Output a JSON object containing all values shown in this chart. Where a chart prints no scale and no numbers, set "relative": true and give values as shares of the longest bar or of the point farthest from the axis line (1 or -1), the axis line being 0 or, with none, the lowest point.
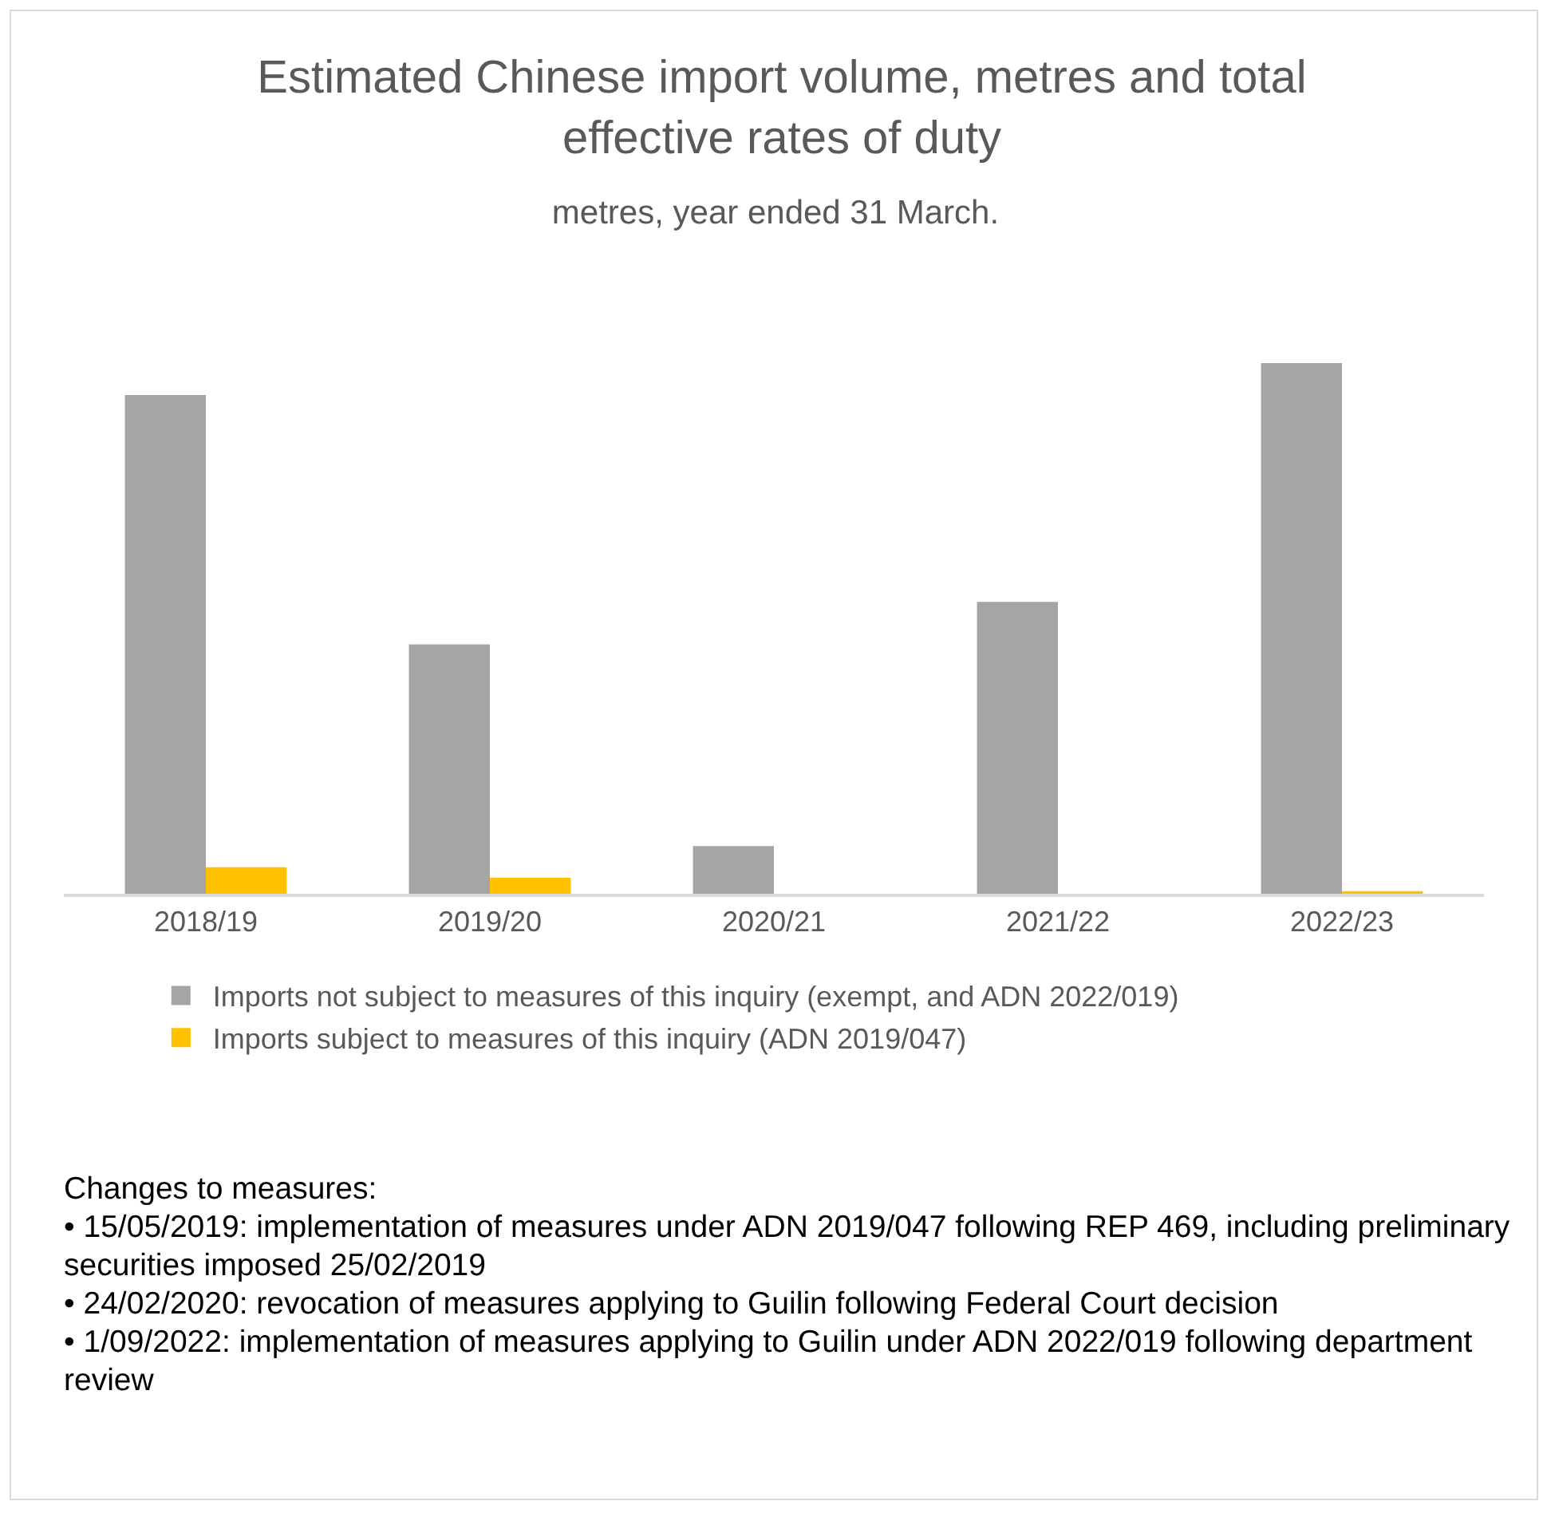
{
  "chart_data": {
    "type": "bar",
    "title": "Estimated Chinese import volume, metres and total effective rates of duty",
    "subtitle": "metres, year ended 31 March.",
    "categories": [
      "2018/19",
      "2019/20",
      "2020/21",
      "2021/22",
      "2022/23"
    ],
    "relative": true,
    "series": [
      {
        "name": "Imports not subject to measures of this inquiry (exempt, and ADN 2022/019)",
        "color": "#a5a5a5",
        "values": [
          0.94,
          0.47,
          0.09,
          0.55,
          1
        ]
      },
      {
        "name": "Imports subject to measures of this inquiry (ADN 2019/047)",
        "color": "#ffc000",
        "values": [
          0.05,
          0.03,
          0,
          0,
          0.005
        ]
      }
    ],
    "legend": "bottom",
    "grid": false,
    "annotations": [
      "Changes to measures:",
      "• 15/05/2019: implementation of measures under ADN 2019/047 following REP 469, including preliminary securities imposed 25/02/2019",
      "• 24/02/2020: revocation of measures applying to Guilin following Federal Court decision",
      "• 1/09/2022: implementation of measures applying to Guilin under ADN 2022/019 following department review"
    ]
  }
}
